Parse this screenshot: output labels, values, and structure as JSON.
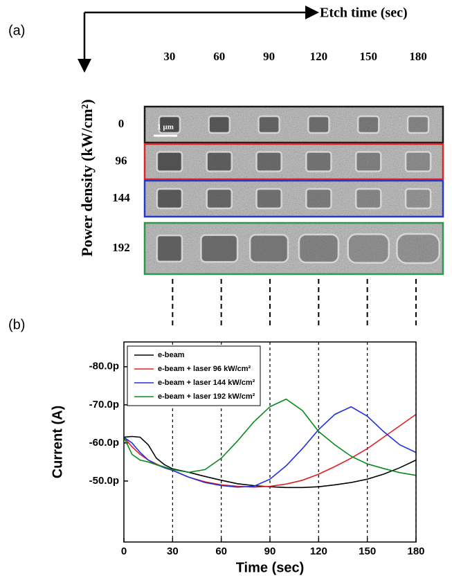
{
  "figure_a": {
    "panel_label": "(a)",
    "x_title": "Etch time (sec)",
    "y_title": "Power density (kW/cm²)",
    "columns": [
      30,
      60,
      90,
      120,
      150,
      180
    ],
    "rows": [
      0,
      96,
      144,
      192
    ],
    "row_colors": [
      "#1a1a1a",
      "#d8262b",
      "#2638c8",
      "#2a9a4a"
    ],
    "scale_bar": "1 µm"
  },
  "chart_data": {
    "type": "line",
    "panel_label": "(b)",
    "x_label": "Time (sec)",
    "y_label": "Current (A)",
    "x": [
      0,
      5,
      10,
      15,
      20,
      25,
      30,
      40,
      50,
      60,
      70,
      80,
      90,
      100,
      110,
      120,
      130,
      140,
      150,
      160,
      170,
      180
    ],
    "series": [
      {
        "name": "e-beam",
        "color": "#000000",
        "values": [
          -61.5,
          -61.7,
          -61.5,
          -59.5,
          -56,
          -54.3,
          -53.2,
          -52.3,
          -51.2,
          -50.2,
          -49.3,
          -48.8,
          -48.5,
          -48.3,
          -48.3,
          -48.5,
          -49,
          -49.6,
          -50.5,
          -51.8,
          -53.5,
          -55.5
        ]
      },
      {
        "name": "e-beam + laser  96 kW/cm²",
        "color": "#e02020",
        "values": [
          -61.5,
          -59,
          -57,
          -55.5,
          -54.5,
          -53.5,
          -52.8,
          -51,
          -49.8,
          -49,
          -48.6,
          -48.4,
          -48.6,
          -49.2,
          -50.2,
          -51.8,
          -53.8,
          -56,
          -58.5,
          -61.5,
          -64.5,
          -67.5
        ]
      },
      {
        "name": "e-beam + laser 144 kW/cm²",
        "color": "#1f2fe0",
        "values": [
          -61.5,
          -60,
          -57.5,
          -55.5,
          -54.3,
          -53.5,
          -52.8,
          -51,
          -49.6,
          -48.8,
          -48.4,
          -48.6,
          -50.5,
          -54,
          -58.5,
          -63.5,
          -67.5,
          -69.5,
          -67,
          -63,
          -59.5,
          -57.5
        ]
      },
      {
        "name": "e-beam + laser 192 kW/cm²",
        "color": "#0a8a1a",
        "values": [
          -61.5,
          -57,
          -55.5,
          -55,
          -54.3,
          -53.7,
          -53,
          -52.3,
          -53,
          -56,
          -60.5,
          -65.5,
          -69.5,
          -71.5,
          -68.5,
          -63,
          -59.5,
          -56.5,
          -54.5,
          -53.3,
          -52.2,
          -51.5
        ]
      }
    ],
    "xlim": [
      0,
      180
    ],
    "xticks": [
      0,
      30,
      60,
      90,
      120,
      150,
      180
    ],
    "ylim": [
      -34,
      -86.5
    ],
    "yticks": [
      {
        "value": -50,
        "label": "-50.0p"
      },
      {
        "value": -60,
        "label": "-60.0p"
      },
      {
        "value": -70,
        "label": "-70.0p"
      },
      {
        "value": -80,
        "label": "-80.0p"
      }
    ],
    "grid": "x-dashed",
    "legend": "top-left"
  }
}
